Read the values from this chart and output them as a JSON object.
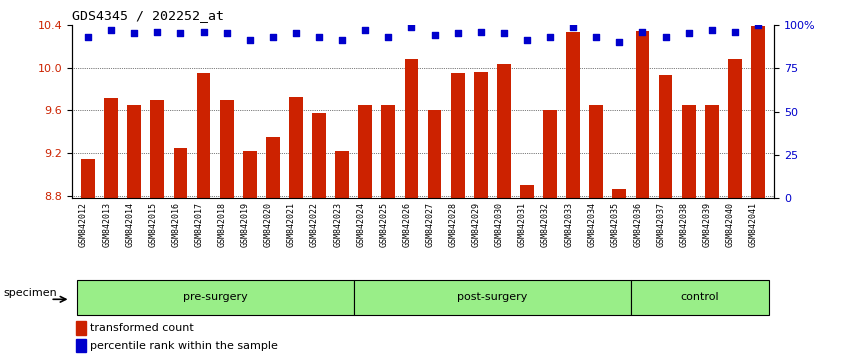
{
  "title": "GDS4345 / 202252_at",
  "categories": [
    "GSM842012",
    "GSM842013",
    "GSM842014",
    "GSM842015",
    "GSM842016",
    "GSM842017",
    "GSM842018",
    "GSM842019",
    "GSM842020",
    "GSM842021",
    "GSM842022",
    "GSM842023",
    "GSM842024",
    "GSM842025",
    "GSM842026",
    "GSM842027",
    "GSM842028",
    "GSM842029",
    "GSM842030",
    "GSM842031",
    "GSM842032",
    "GSM842033",
    "GSM842034",
    "GSM842035",
    "GSM842036",
    "GSM842037",
    "GSM842038",
    "GSM842039",
    "GSM842040",
    "GSM842041"
  ],
  "bar_values": [
    9.15,
    9.72,
    9.65,
    9.7,
    9.25,
    9.95,
    9.7,
    9.22,
    9.35,
    9.73,
    9.58,
    9.22,
    9.65,
    9.65,
    10.08,
    9.6,
    9.95,
    9.96,
    10.03,
    8.9,
    9.6,
    10.33,
    9.65,
    8.87,
    10.34,
    9.93,
    9.65,
    9.65,
    10.08,
    10.39
  ],
  "percentile_values": [
    93,
    97,
    95,
    96,
    95,
    96,
    95,
    91,
    93,
    95,
    93,
    91,
    97,
    93,
    99,
    94,
    95,
    96,
    95,
    91,
    93,
    99,
    93,
    90,
    96,
    93,
    95,
    97,
    96,
    100
  ],
  "bar_color": "#cc2200",
  "percentile_color": "#0000cc",
  "ylim_left": [
    8.78,
    10.4
  ],
  "ylim_right": [
    0,
    100
  ],
  "yticks_left": [
    8.8,
    9.2,
    9.6,
    10.0,
    10.4
  ],
  "yticks_right": [
    0,
    25,
    50,
    75,
    100
  ],
  "ytick_labels_right": [
    "0",
    "25",
    "50",
    "75",
    "100%"
  ],
  "groups": [
    {
      "label": "pre-surgery",
      "start": 0,
      "end": 12
    },
    {
      "label": "post-surgery",
      "start": 12,
      "end": 24
    },
    {
      "label": "control",
      "start": 24,
      "end": 30
    }
  ],
  "group_color": "#99ee88",
  "specimen_label": "specimen",
  "legend_bar_label": "transformed count",
  "legend_dot_label": "percentile rank within the sample",
  "background_color": "#ffffff",
  "bar_bottom": 8.78
}
